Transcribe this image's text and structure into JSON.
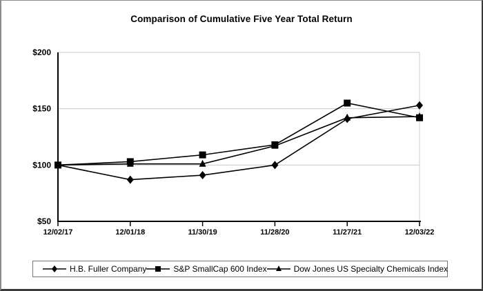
{
  "title": "Comparison of Cumulative Five Year Total Return",
  "chart_data": {
    "type": "line",
    "title": "Comparison of Cumulative Five Year Total Return",
    "x": [
      "12/02/17",
      "12/01/18",
      "11/30/19",
      "11/28/20",
      "11/27/21",
      "12/03/22"
    ],
    "series": [
      {
        "name": "H.B. Fuller Company",
        "marker": "diamond",
        "values": [
          100,
          87,
          91,
          100,
          141,
          153
        ]
      },
      {
        "name": "S&P SmallCap 600 Index",
        "marker": "square",
        "values": [
          100,
          103,
          109,
          118,
          155,
          142
        ]
      },
      {
        "name": "Dow Jones US Specialty Chemicals Index",
        "marker": "triangle",
        "values": [
          100,
          101,
          101,
          117,
          142,
          143
        ]
      }
    ],
    "ylim": [
      50,
      200
    ],
    "yticks": [
      {
        "value": 50,
        "label": "$50"
      },
      {
        "value": 100,
        "label": "$100"
      },
      {
        "value": 150,
        "label": "$150"
      },
      {
        "value": 200,
        "label": "$200"
      }
    ],
    "grid": true,
    "legend_position": "bottom",
    "line_color": "#000000",
    "grid_color": "#c9c9c9",
    "axis_color": "#000000"
  }
}
